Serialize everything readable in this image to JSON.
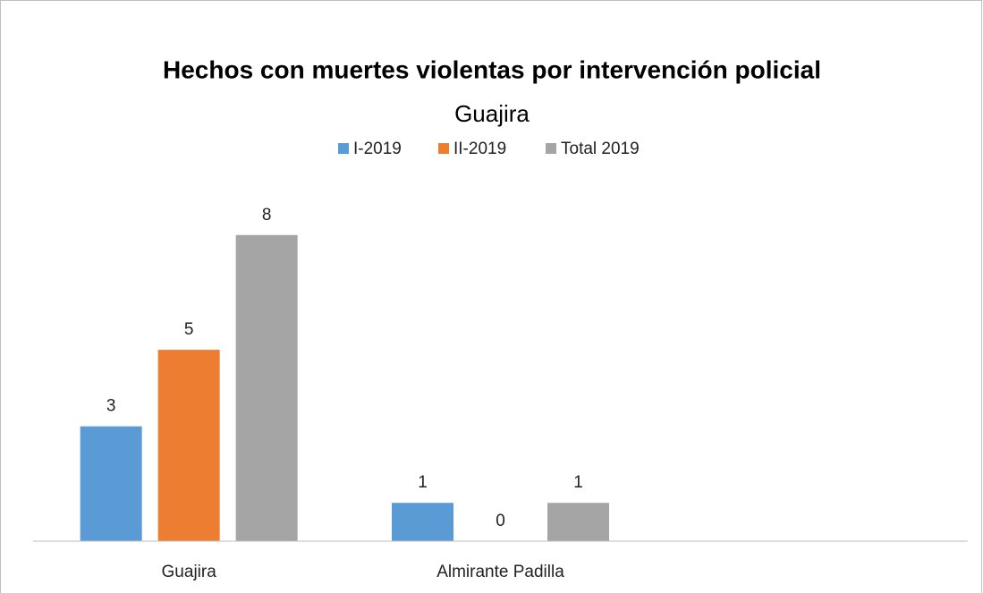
{
  "chart_data": {
    "type": "bar",
    "title": "Hechos con muertes violentas por intervención policial",
    "subtitle": "Guajira",
    "categories": [
      "Guajira",
      "Almirante Padilla",
      null
    ],
    "series": [
      {
        "name": "I-2019",
        "color": "#5b9bd5",
        "values": [
          3,
          1,
          null
        ]
      },
      {
        "name": "II-2019",
        "color": "#ed7d31",
        "values": [
          5,
          0,
          null
        ]
      },
      {
        "name": "Total 2019",
        "color": "#a5a5a5",
        "values": [
          8,
          1,
          null
        ]
      }
    ],
    "ylim": [
      0,
      9
    ],
    "legend": "top"
  }
}
